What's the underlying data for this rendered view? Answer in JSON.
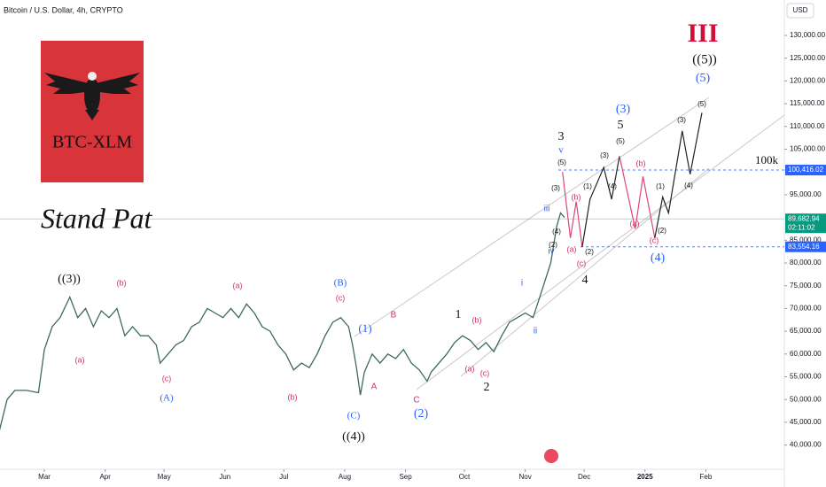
{
  "chart_data": {
    "type": "line",
    "title": "Bitcoin / U.S. Dollar, 4h, CRYPTO",
    "currency": "USD",
    "logo_text": "BTC-XLM",
    "caption": "Stand Pat",
    "xlim": [
      6.4,
      406
    ],
    "ylim": [
      34670,
      137780
    ],
    "xticks": [
      {
        "value": 29,
        "label": "Mar"
      },
      {
        "value": 60,
        "label": "Apr"
      },
      {
        "value": 90,
        "label": "May"
      },
      {
        "value": 121,
        "label": "Jun"
      },
      {
        "value": 151,
        "label": "Jul"
      },
      {
        "value": 182,
        "label": "Aug"
      },
      {
        "value": 213,
        "label": "Sep"
      },
      {
        "value": 243,
        "label": "Oct"
      },
      {
        "value": 274,
        "label": "Nov"
      },
      {
        "value": 304,
        "label": "Dec"
      },
      {
        "value": 335,
        "label": "2025"
      },
      {
        "value": 366,
        "label": "Feb"
      }
    ],
    "yticks": [
      {
        "value": 130000,
        "label": "130,000.00"
      },
      {
        "value": 125000,
        "label": "125,000.00"
      },
      {
        "value": 120000,
        "label": "120,000.00"
      },
      {
        "value": 115000,
        "label": "115,000.00"
      },
      {
        "value": 110000,
        "label": "110,000.00"
      },
      {
        "value": 105000,
        "label": "105,000.00"
      },
      {
        "value": 95000,
        "label": "95,000.00"
      },
      {
        "value": 85000,
        "label": "85,000.00"
      },
      {
        "value": 80000,
        "label": "80,000.00"
      },
      {
        "value": 75000,
        "label": "75,000.00"
      },
      {
        "value": 70000,
        "label": "70,000.00"
      },
      {
        "value": 65000,
        "label": "65,000.00"
      },
      {
        "value": 60000,
        "label": "60,000.00"
      },
      {
        "value": 55000,
        "label": "55,000.00"
      },
      {
        "value": 50000,
        "label": "50,000.00"
      },
      {
        "value": 45000,
        "label": "45,000.00"
      },
      {
        "value": 40000,
        "label": "40,000.00"
      }
    ],
    "series": [
      {
        "color": "#3d6b57",
        "x": [
          6,
          10,
          14,
          20,
          26,
          29,
          33,
          37,
          42,
          46,
          50,
          54,
          58,
          62,
          66,
          70,
          74,
          78,
          82,
          86,
          88,
          92,
          96,
          100,
          104,
          108,
          112,
          116,
          120,
          124,
          128,
          132,
          136,
          140,
          144,
          148,
          152,
          156,
          160,
          164,
          168,
          172,
          176,
          180,
          184,
          186,
          188,
          190,
          192,
          196,
          200,
          204,
          208,
          212,
          216,
          220,
          224,
          226,
          230,
          234,
          238,
          242,
          246,
          250,
          254,
          258,
          262,
          266,
          270,
          274,
          278,
          281,
          284,
          287,
          290,
          292,
          294
        ],
        "values": [
          43000,
          50000,
          52000,
          52000,
          51500,
          61000,
          66000,
          68000,
          72500,
          68000,
          70000,
          66000,
          69500,
          68000,
          70000,
          64000,
          66000,
          64000,
          64000,
          62000,
          58000,
          60000,
          62000,
          63000,
          66000,
          67000,
          70000,
          69000,
          68000,
          70000,
          68000,
          71000,
          69000,
          66000,
          65000,
          62000,
          60000,
          56500,
          58000,
          57000,
          60000,
          64000,
          67000,
          68000,
          66000,
          62000,
          57000,
          51000,
          56000,
          60000,
          58000,
          60000,
          59000,
          61000,
          58000,
          56500,
          54000,
          56000,
          58000,
          60000,
          62500,
          64000,
          63000,
          61000,
          62500,
          60500,
          64000,
          67000,
          68000,
          69000,
          68000,
          72000,
          76000,
          80000,
          88000,
          91000,
          90000
        ]
      },
      {
        "color": "#e0457b",
        "x": [
          293,
          297,
          300,
          303
        ],
        "values": [
          100000,
          85500,
          93500,
          83500
        ]
      },
      {
        "color": "#222222",
        "x": [
          303,
          307,
          314,
          318,
          322
        ],
        "values": [
          83500,
          94000,
          101000,
          94000,
          103500
        ]
      },
      {
        "color": "#e0457b",
        "x": [
          322,
          330,
          334,
          340
        ],
        "values": [
          103500,
          87500,
          99000,
          85500
        ]
      },
      {
        "color": "#222222",
        "x": [
          340,
          344,
          347,
          354,
          358,
          364
        ],
        "values": [
          85500,
          94500,
          91000,
          109000,
          99500,
          113000
        ]
      }
    ],
    "price_tags": [
      {
        "value": 100416.02,
        "label": "100,416.02",
        "color": "#2962ff"
      },
      {
        "value": 89682.94,
        "label": "89,682.94",
        "timer": "02:11:02",
        "color": "#089981"
      },
      {
        "value": 83554.16,
        "label": "83,554.16",
        "color": "#2962ff"
      }
    ],
    "annotations": [
      {
        "text": "((3))",
        "color": "#111"
      },
      {
        "text": "(b)",
        "color": "#d6336c"
      },
      {
        "text": "(a)",
        "color": "#d6336c"
      },
      {
        "text": "(c)",
        "color": "#d6336c"
      },
      {
        "text": "(A)",
        "color": "#2962ff"
      },
      {
        "text": "(a)",
        "color": "#d6336c"
      },
      {
        "text": "(b)",
        "color": "#d6336c"
      },
      {
        "text": "(B)",
        "color": "#2962ff"
      },
      {
        "text": "(c)",
        "color": "#d6336c"
      },
      {
        "text": "(1)",
        "color": "#2962ff"
      },
      {
        "text": "B",
        "color": "#d6336c"
      },
      {
        "text": "A",
        "color": "#d6336c"
      },
      {
        "text": "(C)",
        "color": "#2962ff"
      },
      {
        "text": "((4))",
        "color": "#111"
      },
      {
        "text": "C",
        "color": "#d6336c"
      },
      {
        "text": "(2)",
        "color": "#2962ff"
      },
      {
        "text": "1",
        "color": "#111"
      },
      {
        "text": "(b)",
        "color": "#d6336c"
      },
      {
        "text": "(a)",
        "color": "#d6336c"
      },
      {
        "text": "(c)",
        "color": "#d6336c"
      },
      {
        "text": "2",
        "color": "#111"
      },
      {
        "text": "i",
        "color": "#2962ff"
      },
      {
        "text": "ii",
        "color": "#2962ff"
      },
      {
        "text": "iii",
        "color": "#2962ff"
      },
      {
        "text": "iv",
        "color": "#2962ff"
      },
      {
        "text": "v",
        "color": "#2962ff"
      },
      {
        "text": "3",
        "color": "#111"
      },
      {
        "text": "(5)",
        "color": "#111"
      },
      {
        "text": "(3)",
        "color": "#111"
      },
      {
        "text": "(4)",
        "color": "#111"
      },
      {
        "text": "(2)",
        "color": "#111"
      },
      {
        "text": "(a)",
        "color": "#d6336c"
      },
      {
        "text": "(b)",
        "color": "#d6336c"
      },
      {
        "text": "(c)",
        "color": "#d6336c"
      },
      {
        "text": "4",
        "color": "#111"
      },
      {
        "text": "(2)",
        "color": "#111"
      },
      {
        "text": "(1)",
        "color": "#111"
      },
      {
        "text": "(3)",
        "color": "#111"
      },
      {
        "text": "(4)",
        "color": "#111"
      },
      {
        "text": "(5)",
        "color": "#111"
      },
      {
        "text": "5",
        "color": "#111"
      },
      {
        "text": "(3)",
        "color": "#2962ff"
      },
      {
        "text": "(b)",
        "color": "#d6336c"
      },
      {
        "text": "(a)",
        "color": "#d6336c"
      },
      {
        "text": "(c)",
        "color": "#d6336c"
      },
      {
        "text": "(4)",
        "color": "#2962ff"
      },
      {
        "text": "(2)",
        "color": "#111"
      },
      {
        "text": "(1)",
        "color": "#111"
      },
      {
        "text": "(3)",
        "color": "#111"
      },
      {
        "text": "(4)",
        "color": "#111"
      },
      {
        "text": "(5)",
        "color": "#111"
      },
      {
        "text": "((5))",
        "color": "#111"
      },
      {
        "text": "(5)",
        "color": "#2962ff"
      },
      {
        "text": "III",
        "color": "#d0103a"
      },
      {
        "text": "100k",
        "color": "#111"
      }
    ]
  }
}
